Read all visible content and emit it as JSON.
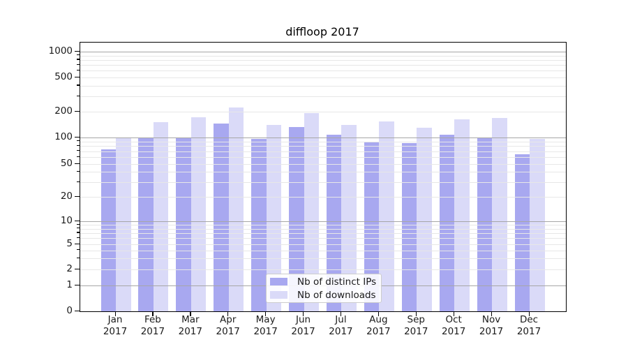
{
  "chart_data": {
    "type": "bar",
    "title": "diffloop 2017",
    "categories": [
      "Jan 2017",
      "Feb 2017",
      "Mar 2017",
      "Apr 2017",
      "May 2017",
      "Jun 2017",
      "Jul 2017",
      "Aug 2017",
      "Sep 2017",
      "Oct 2017",
      "Nov 2017",
      "Dec 2017"
    ],
    "series": [
      {
        "name": "Nb of distinct IPs",
        "color": "#a8a8f0",
        "values": [
          74,
          100,
          100,
          145,
          97,
          133,
          108,
          89,
          87,
          108,
          100,
          65
        ]
      },
      {
        "name": "Nb of downloads",
        "color": "#dadaf8",
        "values": [
          100,
          150,
          172,
          222,
          140,
          192,
          141,
          154,
          130,
          163,
          168,
          96
        ]
      }
    ],
    "yscale": "symlog",
    "yticks": [
      0,
      1,
      2,
      5,
      10,
      20,
      50,
      100,
      200,
      500,
      1000
    ],
    "ytick_labels": [
      "0",
      "1",
      "2",
      "5",
      "10",
      "20",
      "50",
      "100",
      "200",
      "500",
      "1000"
    ],
    "ylim": [
      0,
      1300
    ],
    "xlabel": "",
    "ylabel": "",
    "grid": true,
    "legend_position": "lower center",
    "colors": {
      "major_grid": "#a6a6a6",
      "minor_grid": "#e7e7e7",
      "axis": "#000000",
      "text": "#1a1a1a",
      "legend_bg": "#ffffff",
      "legend_border": "#cccccc"
    }
  }
}
